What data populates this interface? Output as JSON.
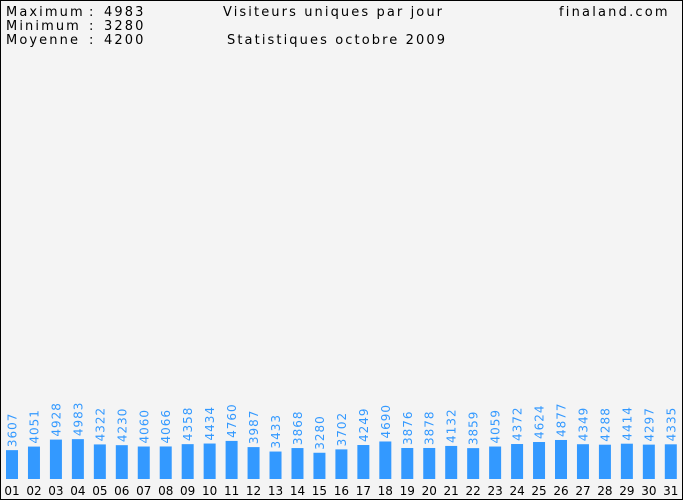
{
  "header": {
    "stats": [
      {
        "label": "Maximum",
        "sep": ":",
        "value": "4983"
      },
      {
        "label": "Minimum",
        "sep": ":",
        "value": "3280"
      },
      {
        "label": "Moyenne",
        "sep": ":",
        "value": "4200"
      }
    ],
    "title": "Visiteurs uniques par jour",
    "subtitle": "Statistiques octobre 2009",
    "site": "finaland.com"
  },
  "colors": {
    "bar": "#3399ff",
    "value_label": "#3399ff",
    "background": "#f4f4f4",
    "text": "#000000"
  },
  "chart_data": {
    "type": "bar",
    "title": "Visiteurs uniques par jour",
    "subtitle": "Statistiques octobre 2009",
    "categories": [
      "01",
      "02",
      "03",
      "04",
      "05",
      "06",
      "07",
      "08",
      "09",
      "10",
      "11",
      "12",
      "13",
      "14",
      "15",
      "16",
      "17",
      "18",
      "19",
      "20",
      "21",
      "22",
      "23",
      "24",
      "25",
      "26",
      "27",
      "28",
      "29",
      "30",
      "31"
    ],
    "series": [
      {
        "values": [
          3607,
          4051,
          4928,
          4983,
          4322,
          4230,
          4060,
          4066,
          4358,
          4434,
          4760,
          3987,
          3433,
          3868,
          3280,
          3702,
          4249,
          4690,
          3876,
          3878,
          4132,
          3859,
          4059,
          4372,
          4624,
          4877,
          4349,
          4288,
          4414,
          4297,
          4335
        ]
      }
    ],
    "data_labels": true,
    "ylim": [
      0,
      30000
    ],
    "grid": false
  }
}
